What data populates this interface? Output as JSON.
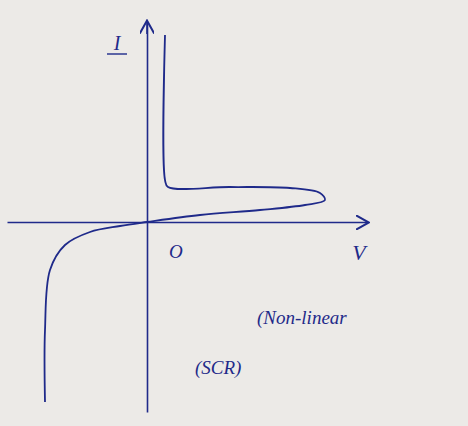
{
  "chart_data": {
    "type": "line",
    "x_label": "V",
    "y_label": "I",
    "xlim": [
      -7,
      11
    ],
    "ylim": [
      -9.5,
      10
    ],
    "tick_labels": false,
    "x": [
      -5.1,
      -5.1,
      -4.85,
      -4.1,
      -2.85,
      -1.35,
      0,
      2.65,
      5.65,
      7.9,
      8.9,
      8.65,
      7.15,
      4.15,
      1.05,
      0.9,
      0.9
    ],
    "series": [
      {
        "name": "SCR",
        "color": "#1f2a8a",
        "values": [
          -9,
          -5.4,
          -2.4,
          -1.15,
          -0.5,
          -0.2,
          0,
          0.35,
          0.6,
          0.85,
          1.1,
          1.45,
          1.7,
          1.75,
          1.75,
          2.1,
          9.35
        ]
      }
    ],
    "annotations": [
      {
        "text": "O",
        "x": 1.1,
        "y": -1.8
      },
      {
        "text": "(Non-linear",
        "x": 5.5,
        "y": -5.1
      },
      {
        "text": "(SCR)",
        "x": 2.4,
        "y": -7.6
      }
    ]
  }
}
